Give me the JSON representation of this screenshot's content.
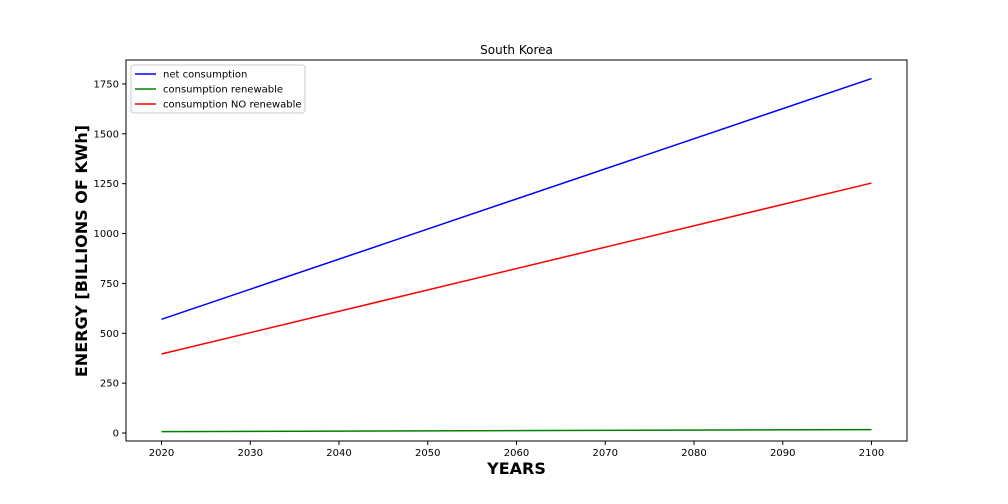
{
  "chart_data": {
    "type": "line",
    "title": "South Korea",
    "xlabel": "YEARS",
    "ylabel": "ENERGY [BILLIONS OF KWh]",
    "xlim": [
      2016,
      2104
    ],
    "ylim": [
      -40,
      1870
    ],
    "xticks": [
      2020,
      2030,
      2040,
      2050,
      2060,
      2070,
      2080,
      2090,
      2100
    ],
    "yticks": [
      0,
      250,
      500,
      750,
      1000,
      1250,
      1500,
      1750
    ],
    "grid": false,
    "legend_position": "upper-left",
    "series": [
      {
        "name": "net consumption",
        "color": "#0000ff",
        "x": [
          2020,
          2100
        ],
        "values": [
          570,
          1777
        ]
      },
      {
        "name": "consumption renewable",
        "color": "#008000",
        "x": [
          2020,
          2100
        ],
        "values": [
          7,
          17
        ]
      },
      {
        "name": "consumption NO renewable",
        "color": "#ff0000",
        "x": [
          2020,
          2100
        ],
        "values": [
          396,
          1253
        ]
      }
    ]
  }
}
